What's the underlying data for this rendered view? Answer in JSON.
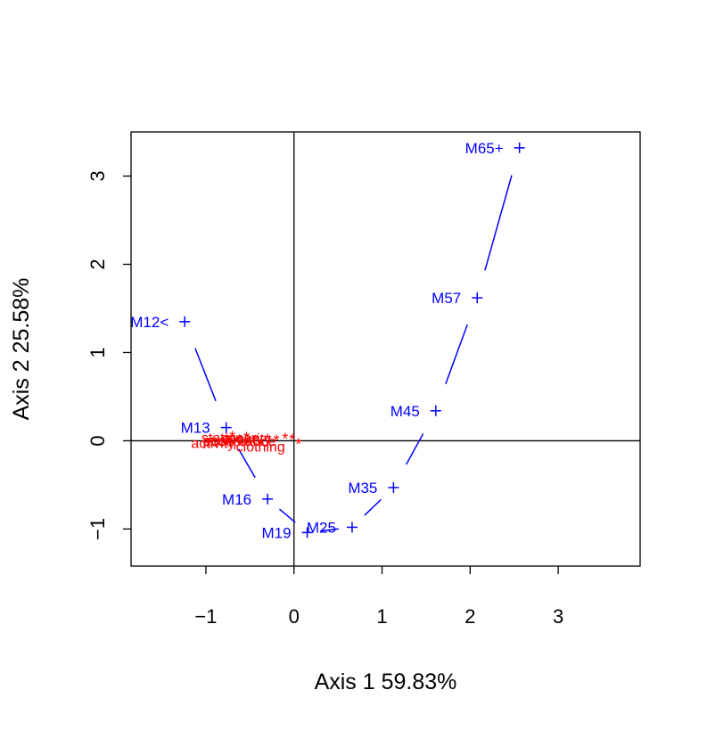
{
  "chart_data": {
    "type": "scatter",
    "xlabel": "Axis 1    59.83%",
    "ylabel": "Axis 2    25.58%",
    "xlim": [
      -1.85,
      3.93
    ],
    "ylim": [
      -1.42,
      3.5
    ],
    "xticks": [
      "−1",
      "0",
      "1",
      "2",
      "3"
    ],
    "xtick_values": [
      -1,
      0,
      1,
      2,
      3
    ],
    "yticks": [
      "−1",
      "0",
      "1",
      "2",
      "3"
    ],
    "ytick_values": [
      -1,
      0,
      1,
      2,
      3
    ],
    "reference_lines": {
      "x": 0,
      "y": 0
    },
    "series": [
      {
        "name": "",
        "color": "#0000ff",
        "marker": "+",
        "connected": true,
        "points": [
          {
            "label": "M12<",
            "x": -1.24,
            "y": 1.35
          },
          {
            "label": "M13",
            "x": -0.77,
            "y": 0.15
          },
          {
            "label": "M16",
            "x": -0.3,
            "y": -0.66
          },
          {
            "label": "M19",
            "x": 0.15,
            "y": -1.04
          },
          {
            "label": "M25",
            "x": 0.66,
            "y": -0.98
          },
          {
            "label": "M35",
            "x": 1.13,
            "y": -0.53
          },
          {
            "label": "M45",
            "x": 1.61,
            "y": 0.34
          },
          {
            "label": "M57",
            "x": 2.08,
            "y": 1.62
          },
          {
            "label": "M65+",
            "x": 2.56,
            "y": 3.32
          }
        ]
      },
      {
        "name": "",
        "color": "#ff0000",
        "marker": "*",
        "connected": false,
        "points": [
          {
            "label": "activity",
            "x": -0.92,
            "y": -0.01
          },
          {
            "label": "positive",
            "x": -0.76,
            "y": 0.02
          },
          {
            "label": "stationary",
            "x": -0.7,
            "y": 0.05
          },
          {
            "label": "acceptance",
            "x": -0.62,
            "y": 0.01
          },
          {
            "label": "security",
            "x": -0.54,
            "y": 0.04
          },
          {
            "label": "clothing",
            "x": -0.38,
            "y": -0.05
          },
          {
            "label": "",
            "x": -0.45,
            "y": 0.0
          },
          {
            "label": "",
            "x": -0.3,
            "y": 0.02
          },
          {
            "label": "",
            "x": -0.2,
            "y": 0.01
          },
          {
            "label": "",
            "x": -0.1,
            "y": 0.03
          },
          {
            "label": "",
            "x": -0.02,
            "y": 0.02
          },
          {
            "label": "",
            "x": 0.05,
            "y": -0.03
          }
        ]
      }
    ]
  }
}
